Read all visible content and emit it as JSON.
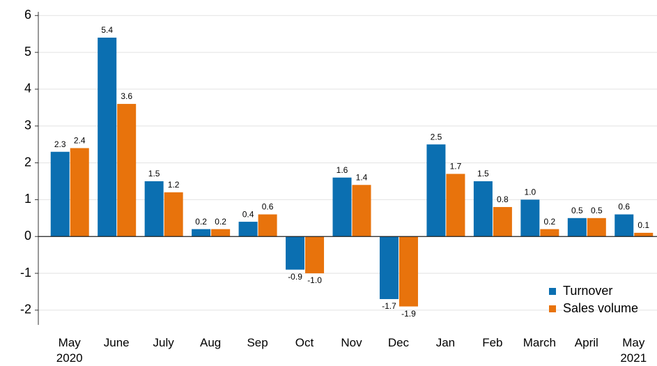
{
  "chart_data": {
    "type": "bar",
    "categories": [
      "May 2020",
      "June",
      "July",
      "Aug",
      "Sep",
      "Oct",
      "Nov",
      "Dec",
      "Jan",
      "Feb",
      "March",
      "April",
      "May 2021"
    ],
    "series": [
      {
        "name": "Turnover",
        "color": "#0b6fb1",
        "values": [
          2.3,
          5.4,
          1.5,
          0.2,
          0.4,
          -0.9,
          1.6,
          -1.7,
          2.5,
          1.5,
          1.0,
          0.5,
          0.6
        ],
        "value_labels": [
          "2.3",
          "5.4",
          "1.5",
          "0.2",
          "0.4",
          "-0.9",
          "1.6",
          "-1.7",
          "2.5",
          "1.5",
          "1.0",
          "0.5",
          "0.6"
        ]
      },
      {
        "name": "Sales volume",
        "color": "#e8730c",
        "values": [
          2.4,
          3.6,
          1.2,
          0.2,
          0.6,
          -1.0,
          1.4,
          -1.9,
          1.7,
          0.8,
          0.2,
          0.5,
          0.1
        ],
        "value_labels": [
          "2.4",
          "3.6",
          "1.2",
          "0.2",
          "0.6",
          "-1.0",
          "1.4",
          "-1.9",
          "1.7",
          "0.8",
          "0.2",
          "0.5",
          "0.1"
        ]
      }
    ],
    "ylim": [
      -2.4,
      6.1
    ],
    "yticks": [
      -2,
      -1,
      0,
      1,
      2,
      3,
      4,
      5,
      6
    ],
    "grid": true,
    "legend": "lower right"
  }
}
